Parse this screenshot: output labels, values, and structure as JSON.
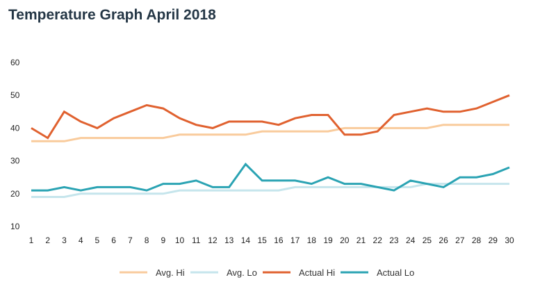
{
  "chart_data": {
    "type": "line",
    "title": "Temperature Graph April 2018",
    "xlabel": "",
    "ylabel": "",
    "x": [
      1,
      2,
      3,
      4,
      5,
      6,
      7,
      8,
      9,
      10,
      11,
      12,
      13,
      14,
      15,
      16,
      17,
      18,
      19,
      20,
      21,
      22,
      23,
      24,
      25,
      26,
      27,
      28,
      29,
      30
    ],
    "ylim": [
      10,
      60
    ],
    "yticks": [
      10,
      20,
      30,
      40,
      50,
      60
    ],
    "grid": false,
    "legend_position": "bottom",
    "series": [
      {
        "name": "Avg. Hi",
        "color": "#f9cb9c",
        "values": [
          36,
          36,
          36,
          37,
          37,
          37,
          37,
          37,
          37,
          38,
          38,
          38,
          38,
          38,
          39,
          39,
          39,
          39,
          39,
          40,
          40,
          40,
          40,
          40,
          40,
          41,
          41,
          41,
          41,
          41
        ]
      },
      {
        "name": "Avg. Lo",
        "color": "#c5e5ec",
        "values": [
          19,
          19,
          19,
          20,
          20,
          20,
          20,
          20,
          20,
          21,
          21,
          21,
          21,
          21,
          21,
          21,
          22,
          22,
          22,
          22,
          22,
          22,
          22,
          22,
          23,
          23,
          23,
          23,
          23,
          23
        ]
      },
      {
        "name": "Actual Hi",
        "color": "#e0612f",
        "values": [
          40,
          37,
          45,
          42,
          40,
          43,
          45,
          47,
          46,
          43,
          41,
          40,
          42,
          42,
          42,
          41,
          43,
          44,
          44,
          38,
          38,
          39,
          44,
          45,
          46,
          45,
          45,
          46,
          48,
          50
        ]
      },
      {
        "name": "Actual Lo",
        "color": "#2aa3b3",
        "values": [
          21,
          21,
          22,
          21,
          22,
          22,
          22,
          21,
          23,
          23,
          24,
          22,
          22,
          29,
          24,
          24,
          24,
          23,
          25,
          23,
          23,
          22,
          21,
          24,
          23,
          22,
          25,
          25,
          26,
          28
        ]
      }
    ]
  }
}
